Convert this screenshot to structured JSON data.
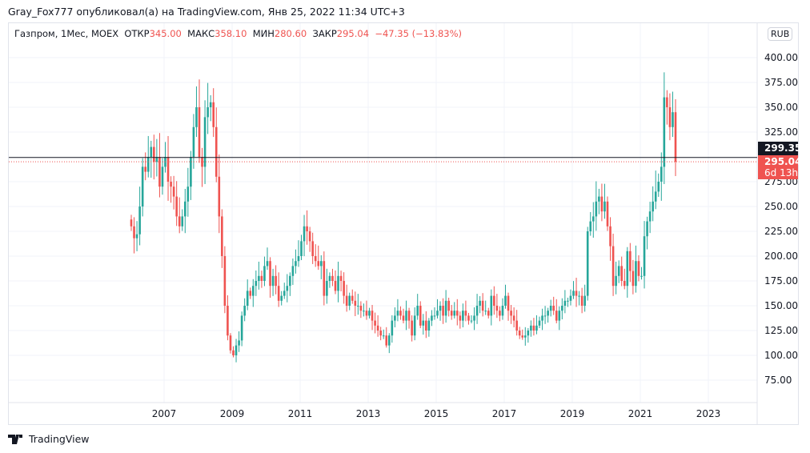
{
  "published": "Gray_Fox777 опубликовал(а) на TradingView.com, Янв 25, 2022 11:34 UTC+3",
  "legend": {
    "symbol": "Газпром, 1Мес, MOEX",
    "open_label": "ОТКР",
    "open": "345.00",
    "high_label": "МАКС",
    "high": "358.10",
    "low_label": "МИН",
    "low": "280.60",
    "close_label": "ЗАКР",
    "close": "295.04",
    "change": "−47.35 (−13.83%)"
  },
  "currency": "RUB",
  "price_tags": {
    "current": "299.35",
    "last_close": "295.04",
    "countdown": "6d 13h"
  },
  "brand": "TradingView",
  "colors": {
    "up": "#26a69a",
    "down": "#ef5350"
  },
  "chart_data": {
    "type": "candlestick",
    "title": "Газпром, 1Мес, MOEX",
    "start": "2006-01",
    "interval": "1M",
    "closes": [
      230,
      218,
      222,
      250,
      290,
      285,
      300,
      310,
      295,
      300,
      270,
      290,
      300,
      275,
      270,
      260,
      240,
      230,
      240,
      255,
      270,
      300,
      330,
      350,
      300,
      290,
      340,
      350,
      355,
      330,
      280,
      240,
      200,
      150,
      120,
      105,
      100,
      110,
      115,
      140,
      150,
      165,
      160,
      170,
      175,
      180,
      175,
      190,
      195,
      170,
      180,
      170,
      155,
      160,
      165,
      170,
      180,
      190,
      195,
      200,
      215,
      230,
      225,
      215,
      200,
      195,
      190,
      195,
      160,
      175,
      180,
      175,
      165,
      180,
      175,
      160,
      150,
      160,
      155,
      150,
      150,
      145,
      145,
      140,
      145,
      135,
      130,
      125,
      120,
      120,
      110,
      120,
      135,
      140,
      145,
      140,
      135,
      145,
      135,
      120,
      140,
      150,
      130,
      135,
      125,
      135,
      140,
      140,
      145,
      150,
      140,
      155,
      145,
      140,
      145,
      140,
      135,
      145,
      140,
      135,
      135,
      140,
      150,
      155,
      145,
      145,
      140,
      160,
      150,
      145,
      140,
      150,
      160,
      145,
      140,
      135,
      125,
      120,
      118,
      120,
      125,
      130,
      125,
      130,
      135,
      140,
      140,
      145,
      150,
      145,
      135,
      145,
      150,
      155,
      155,
      160,
      165,
      160,
      160,
      150,
      160,
      225,
      235,
      240,
      255,
      260,
      245,
      255,
      230,
      210,
      170,
      180,
      190,
      175,
      170,
      205,
      185,
      170,
      195,
      180,
      180,
      220,
      235,
      245,
      255,
      265,
      275,
      290,
      360,
      350,
      330,
      345
    ],
    "last_candle": {
      "date": "2022-01",
      "open": 345.0,
      "high": 358.1,
      "low": 280.6,
      "close": 295.04
    },
    "current_price": 299.35,
    "y_ticks": [
      "400.00",
      "375.00",
      "350.00",
      "325.00",
      "275.00",
      "250.00",
      "225.00",
      "200.00",
      "175.00",
      "150.00",
      "125.00",
      "100.00",
      "75.00"
    ],
    "x_ticks": [
      "2007",
      "2009",
      "2011",
      "2013",
      "2015",
      "2017",
      "2019",
      "2021",
      "2023"
    ],
    "grid": true
  }
}
